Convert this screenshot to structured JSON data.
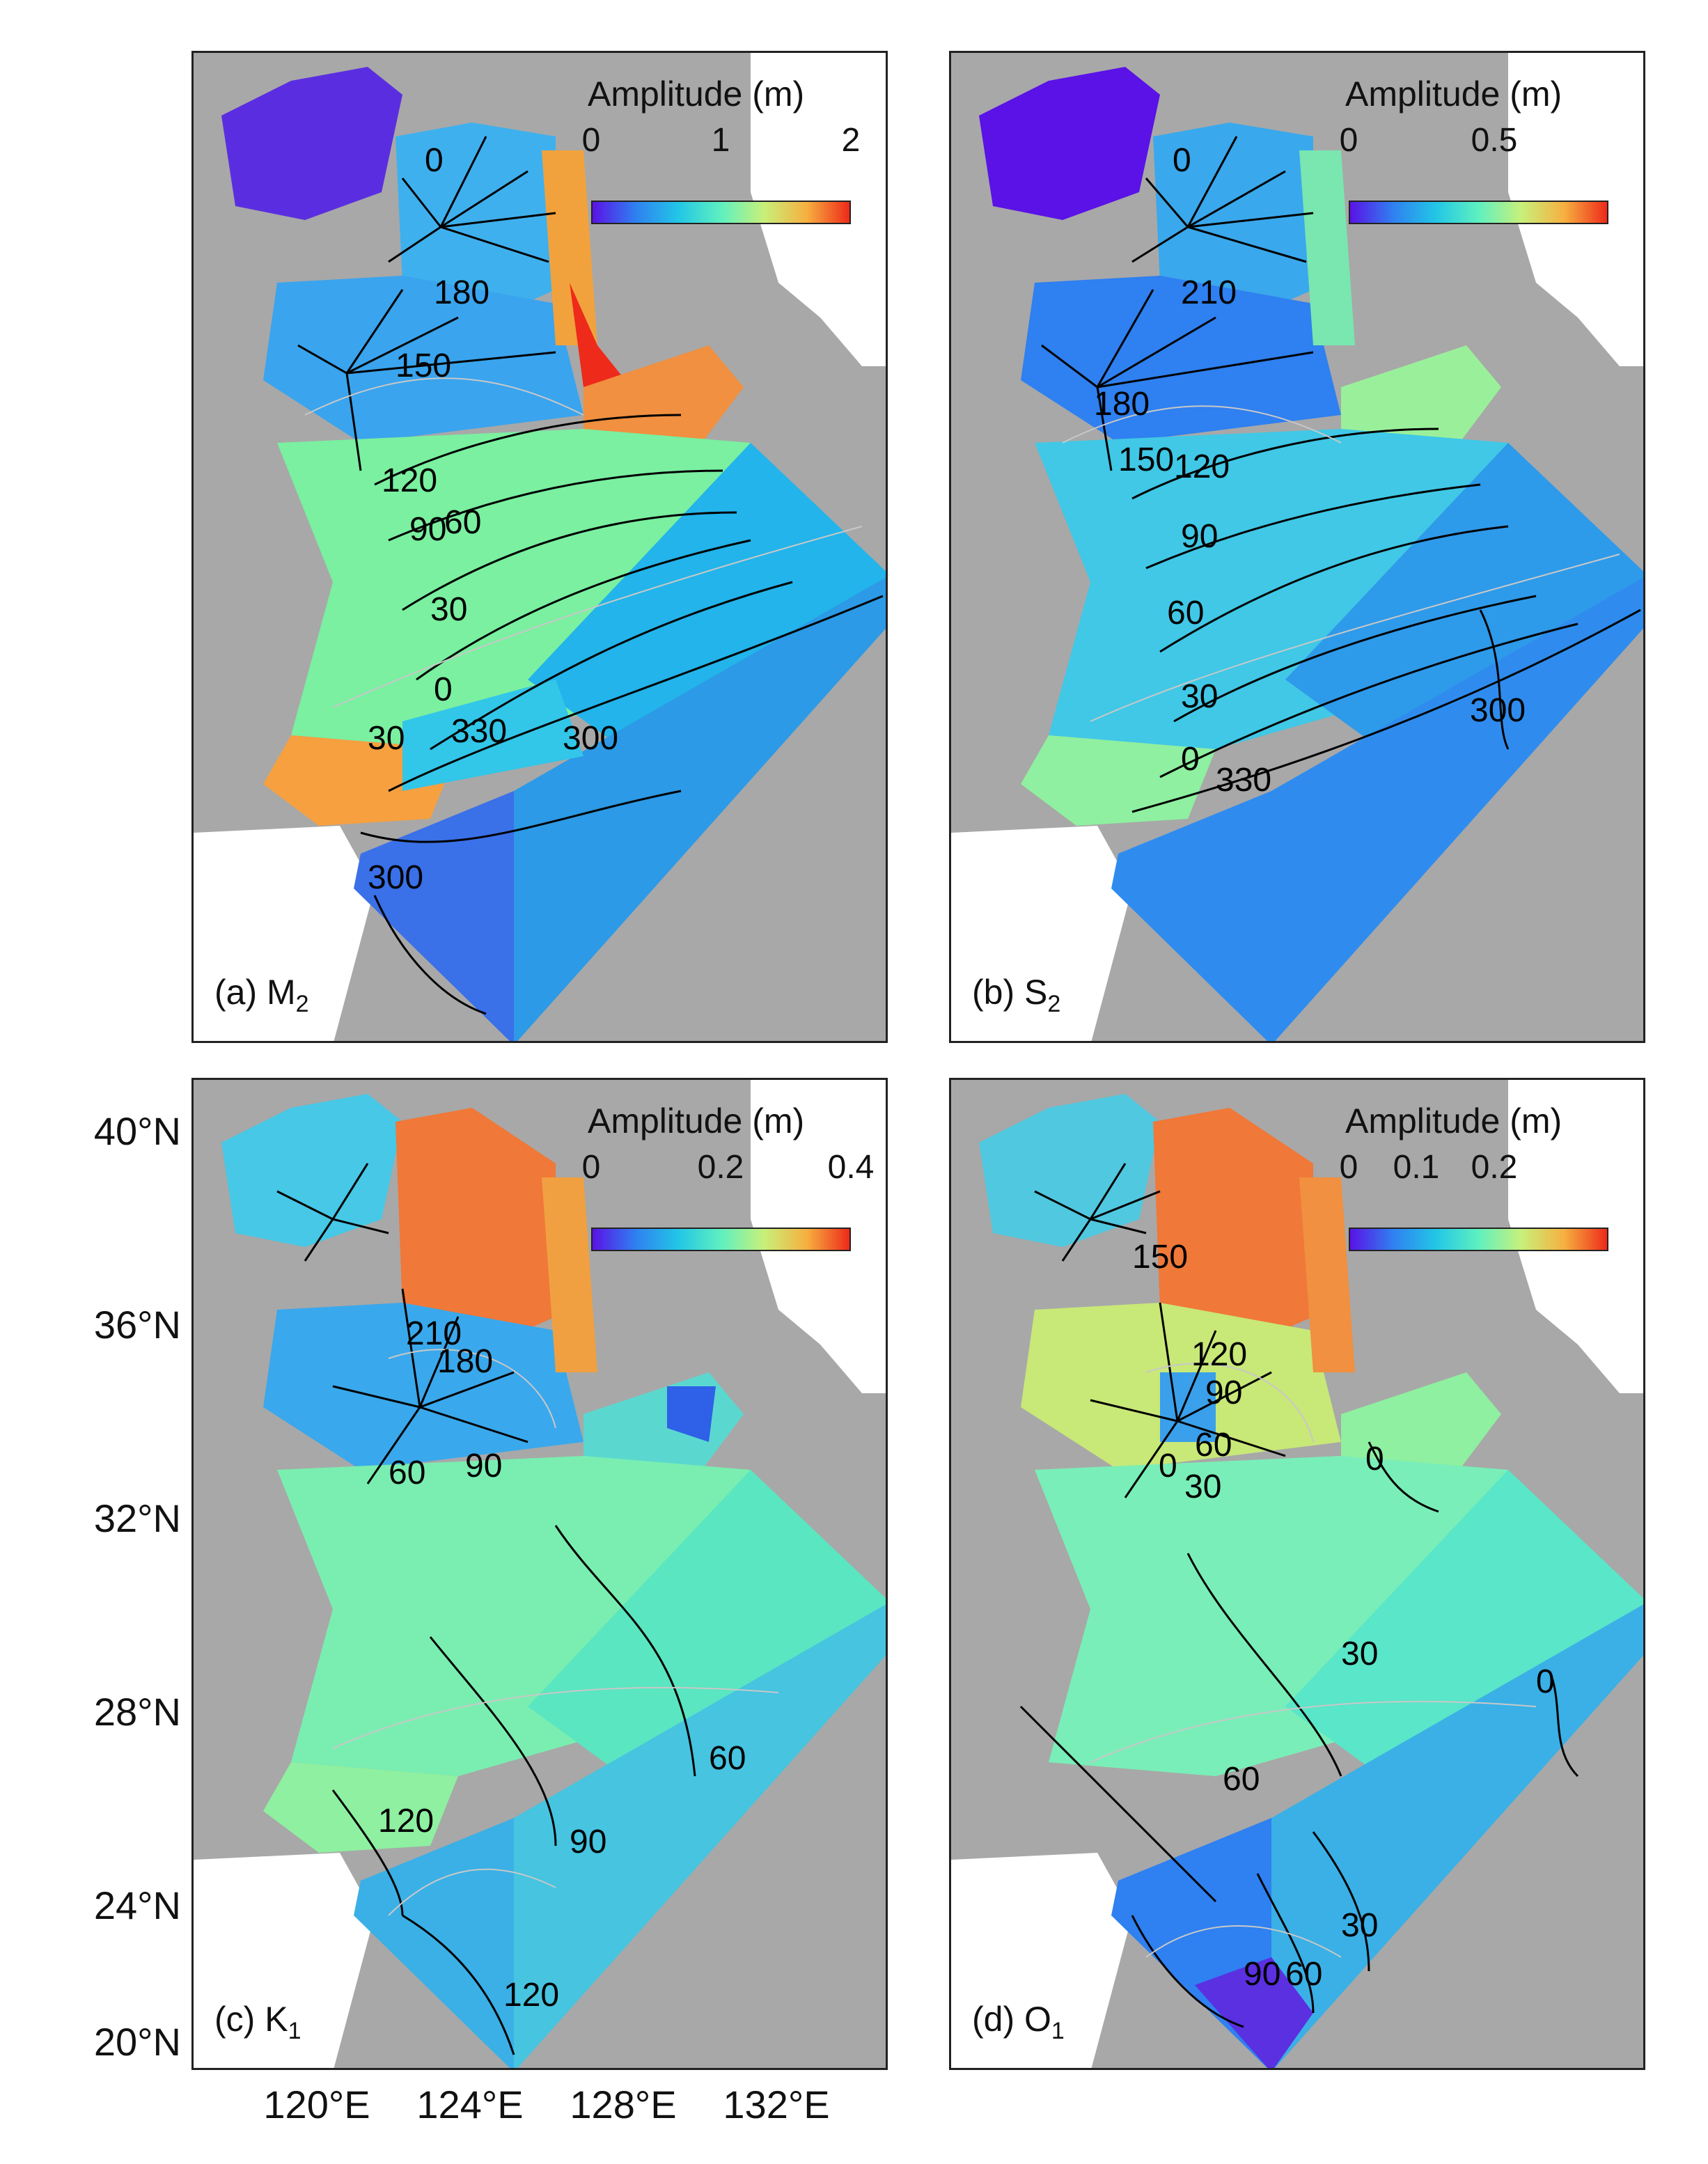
{
  "axes": {
    "lat_labels": [
      "40°N",
      "36°N",
      "32°N",
      "28°N",
      "24°N",
      "20°N"
    ],
    "lon_labels": [
      "120°E",
      "124°E",
      "128°E",
      "132°E"
    ]
  },
  "colormap": {
    "name": "jet-like",
    "stops": [
      "#5a12e6",
      "#2f80f0",
      "#22c6e6",
      "#5ff0c0",
      "#c8f07a",
      "#f6b040",
      "#ee2a1a"
    ]
  },
  "land_color": "#a8a8a8",
  "panels": [
    {
      "id": "a",
      "label_prefix": "(a) ",
      "constituent": "M",
      "subscript": "2",
      "colorbar_title": "Amplitude (m)",
      "colorbar_ticks": [
        "0",
        "1",
        "2"
      ],
      "phase_labels": [
        "0",
        "180",
        "150",
        "120",
        "90",
        "60",
        "30",
        "0",
        "330",
        "300",
        "30",
        "300"
      ]
    },
    {
      "id": "b",
      "label_prefix": "(b) ",
      "constituent": "S",
      "subscript": "2",
      "colorbar_title": "Amplitude (m)",
      "colorbar_ticks": [
        "0",
        "0.5"
      ],
      "phase_labels": [
        "0",
        "210",
        "180",
        "150",
        "120",
        "90",
        "60",
        "30",
        "0",
        "330",
        "300"
      ]
    },
    {
      "id": "c",
      "label_prefix": "(c) ",
      "constituent": "K",
      "subscript": "1",
      "colorbar_title": "Amplitude (m)",
      "colorbar_ticks": [
        "0",
        "0.2",
        "0.4"
      ],
      "phase_labels": [
        "210",
        "180",
        "60",
        "90",
        "120",
        "90",
        "60",
        "120"
      ]
    },
    {
      "id": "d",
      "label_prefix": "(d) ",
      "constituent": "O",
      "subscript": "1",
      "colorbar_title": "Amplitude (m)",
      "colorbar_ticks": [
        "0",
        "0.1",
        "0.2"
      ],
      "phase_labels": [
        "150",
        "120",
        "90",
        "60",
        "30",
        "0",
        "0",
        "30",
        "60",
        "0",
        "90",
        "60",
        "30"
      ]
    }
  ]
}
